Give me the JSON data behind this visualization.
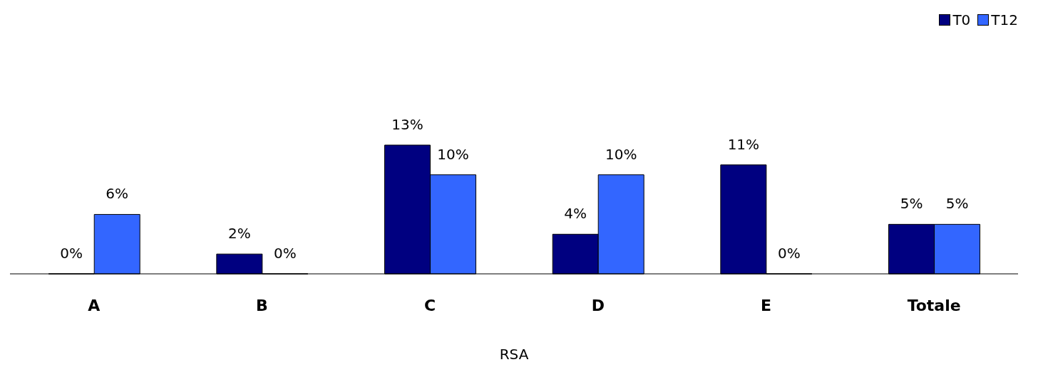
{
  "chart_data": {
    "type": "bar",
    "xlabel": "RSA",
    "categories": [
      "A",
      "B",
      "C",
      "D",
      "E",
      "Totale"
    ],
    "series": [
      {
        "name": "T0",
        "color": "#000080",
        "values": [
          0,
          2,
          13,
          4,
          11,
          5
        ],
        "value_labels": [
          "0%",
          "2%",
          "13%",
          "4%",
          "11%",
          "5%"
        ]
      },
      {
        "name": "T12",
        "color": "#3366ff",
        "values": [
          6,
          0,
          10,
          10,
          0,
          5
        ],
        "value_labels": [
          "6%",
          "0%",
          "10%",
          "10%",
          "0%",
          "5%"
        ]
      }
    ],
    "legend": "top right",
    "grid": false
  }
}
